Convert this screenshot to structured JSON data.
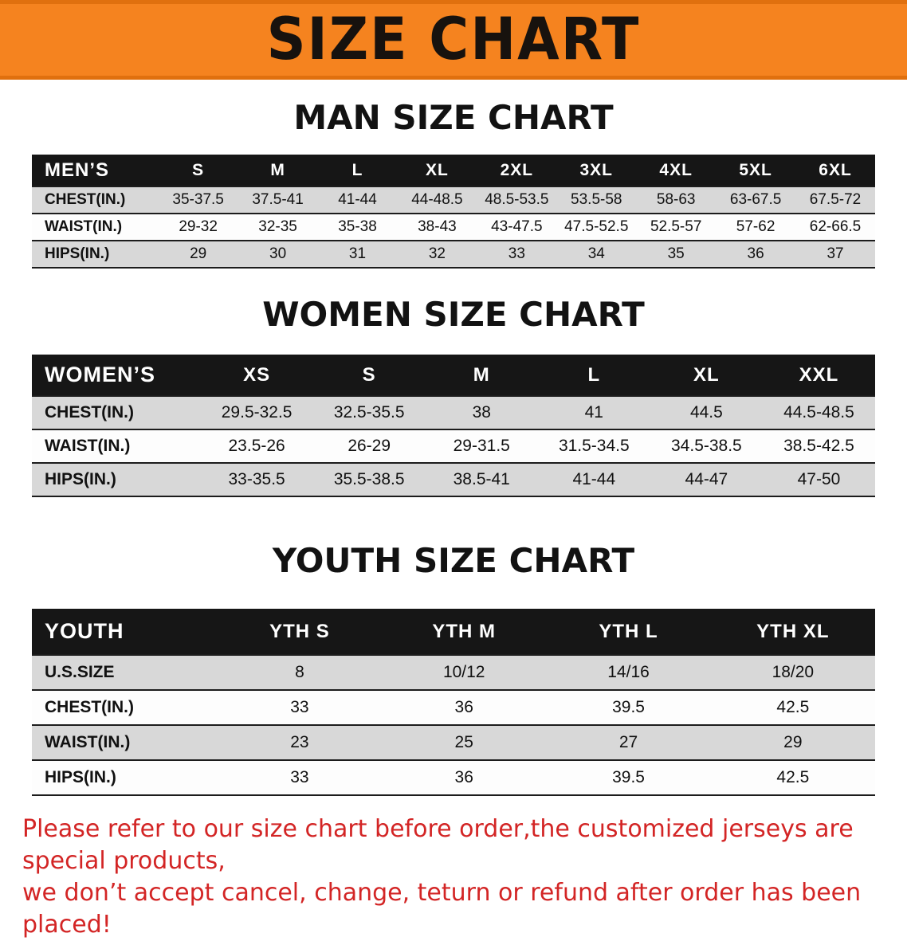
{
  "banner": {
    "title": "SIZE CHART"
  },
  "colors": {
    "banner_orange": "#f5831f",
    "banner_edge": "#e0700e",
    "header_black": "#161616",
    "row_gray": "#d8d8d8",
    "footer_red": "#d32525"
  },
  "sections": [
    {
      "id": "men",
      "heading": "MAN SIZE CHART",
      "table": {
        "header": [
          "MEN’S",
          "S",
          "M",
          "L",
          "XL",
          "2XL",
          "3XL",
          "4XL",
          "5XL",
          "6XL"
        ],
        "rows": [
          [
            "CHEST(IN.)",
            "35-37.5",
            "37.5-41",
            "41-44",
            "44-48.5",
            "48.5-53.5",
            "53.5-58",
            "58-63",
            "63-67.5",
            "67.5-72"
          ],
          [
            "WAIST(IN.)",
            "29-32",
            "32-35",
            "35-38",
            "38-43",
            "43-47.5",
            "47.5-52.5",
            "52.5-57",
            "57-62",
            "62-66.5"
          ],
          [
            "HIPS(IN.)",
            "29",
            "30",
            "31",
            "32",
            "33",
            "34",
            "35",
            "36",
            "37"
          ]
        ]
      }
    },
    {
      "id": "women",
      "heading": "WOMEN SIZE CHART",
      "table": {
        "header": [
          "WOMEN’S",
          "XS",
          "S",
          "M",
          "L",
          "XL",
          "XXL"
        ],
        "rows": [
          [
            "CHEST(IN.)",
            "29.5-32.5",
            "32.5-35.5",
            "38",
            "41",
            "44.5",
            "44.5-48.5"
          ],
          [
            "WAIST(IN.)",
            "23.5-26",
            "26-29",
            "29-31.5",
            "31.5-34.5",
            "34.5-38.5",
            "38.5-42.5"
          ],
          [
            "HIPS(IN.)",
            "33-35.5",
            "35.5-38.5",
            "38.5-41",
            "41-44",
            "44-47",
            "47-50"
          ]
        ]
      }
    },
    {
      "id": "youth",
      "heading": "YOUTH SIZE CHART",
      "table": {
        "header": [
          "YOUTH",
          "YTH S",
          "YTH M",
          "YTH L",
          "YTH XL"
        ],
        "rows": [
          [
            "U.S.SIZE",
            "8",
            "10/12",
            "14/16",
            "18/20"
          ],
          [
            "CHEST(IN.)",
            "33",
            "36",
            "39.5",
            "42.5"
          ],
          [
            "WAIST(IN.)",
            "23",
            "25",
            "27",
            "29"
          ],
          [
            "HIPS(IN.)",
            "33",
            "36",
            "39.5",
            "42.5"
          ]
        ]
      }
    }
  ],
  "disclaimer": {
    "line1": "Please refer to our size chart before order,the customized jerseys are special products,",
    "line2": "we don’t accept cancel, change, teturn or refund after order has been placed!"
  }
}
